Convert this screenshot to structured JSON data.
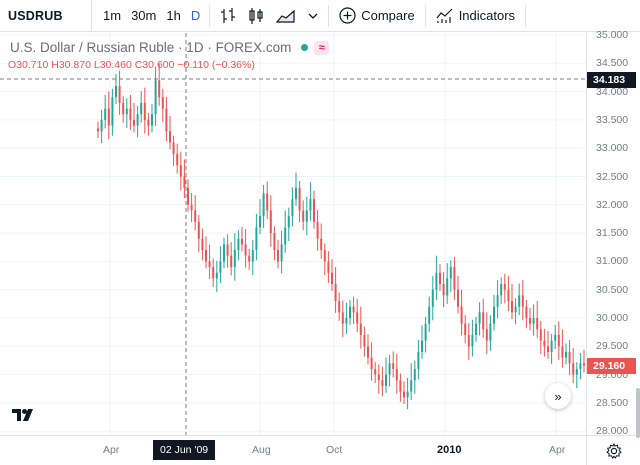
{
  "toolbar": {
    "symbol": "USDRUB",
    "intervals": [
      "1m",
      "30m",
      "1h"
    ],
    "interval_dropdown": "D",
    "compare_label": "Compare",
    "indicators_label": "Indicators"
  },
  "legend": {
    "title": "U.S. Dollar / Russian Ruble · 1D · FOREX.com",
    "o_label": "O",
    "o": "30.710",
    "h_label": "H",
    "h": "30.870",
    "l_label": "L",
    "l": "30.460",
    "c_label": "C",
    "c": "30.600",
    "change": "−0.110 (−0.36%)"
  },
  "price_axis": {
    "labels": [
      "35.000",
      "34.500",
      "34.000",
      "33.500",
      "33.000",
      "32.500",
      "32.000",
      "31.500",
      "31.000",
      "30.500",
      "30.000",
      "29.500",
      "29.000",
      "28.500",
      "28.000"
    ],
    "crosshair_price": "34.183",
    "last_price": "29.160"
  },
  "time_axis": {
    "labels": [
      "Apr",
      "Aug",
      "Oct",
      "2010",
      "Apr"
    ],
    "crosshair_date": "02 Jun '09"
  },
  "colors": {
    "up": "#26a69a",
    "down": "#ef5350",
    "accent": "#2962ff"
  },
  "chart_data": {
    "type": "candlestick",
    "ylim": [
      28.0,
      35.0
    ],
    "series": [
      {
        "values": [
          33.3,
          33.5,
          33.7,
          33.4,
          33.9,
          34.1,
          33.8,
          33.6,
          33.7,
          33.5,
          33.4,
          33.6,
          33.8,
          33.5,
          33.4,
          33.6,
          34.2,
          33.9,
          33.7,
          33.3,
          33.1,
          32.9,
          32.7,
          32.5,
          32.3,
          32.0,
          31.9,
          31.7,
          31.4,
          31.2,
          31.0,
          30.9,
          30.7,
          30.8,
          31.0,
          31.3,
          31.1,
          30.9,
          31.2,
          31.4,
          31.3,
          31.1,
          31.0,
          31.2,
          31.6,
          31.8,
          32.2,
          31.9,
          31.5,
          31.2,
          31.0,
          31.3,
          31.6,
          31.8,
          32.1,
          32.3,
          31.9,
          31.7,
          31.9,
          32.1,
          31.7,
          31.4,
          31.2,
          31.0,
          30.8,
          30.6,
          30.3,
          30.1,
          29.9,
          30.0,
          30.2,
          30.1,
          29.9,
          29.7,
          29.5,
          29.3,
          29.1,
          29.0,
          28.9,
          28.8,
          29.0,
          29.2,
          29.1,
          28.9,
          28.7,
          28.6,
          28.7,
          28.9,
          29.1,
          29.4,
          29.6,
          29.9,
          30.2,
          30.5,
          30.8,
          30.6,
          30.4,
          30.7,
          30.9,
          30.5,
          30.2,
          29.9,
          29.7,
          29.5,
          29.7,
          29.9,
          30.1,
          29.8,
          29.6,
          29.9,
          30.2,
          30.4,
          30.6,
          30.5,
          30.3,
          30.1,
          30.2,
          30.4,
          30.2,
          30.0,
          29.9,
          30.0,
          29.8,
          29.6,
          29.5,
          29.4,
          29.6,
          29.7,
          29.5,
          29.3,
          29.4,
          29.2,
          29.0,
          29.1,
          29.2,
          29.16
        ]
      }
    ]
  }
}
